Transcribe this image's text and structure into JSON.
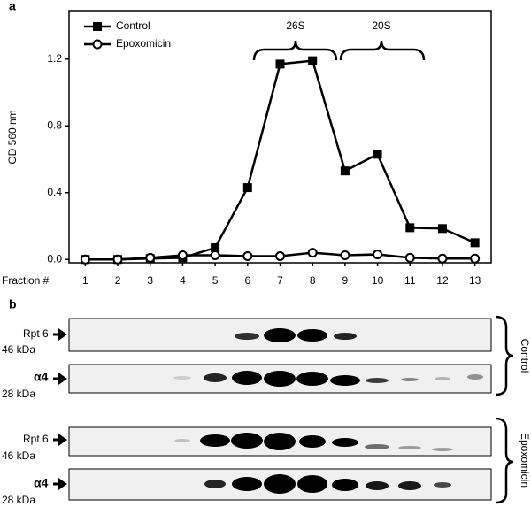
{
  "chart_data": {
    "type": "line",
    "panel_label": "a",
    "y_label": "OD 560 nm",
    "x_label": "Fraction #",
    "x": [
      1,
      2,
      3,
      4,
      5,
      6,
      7,
      8,
      9,
      10,
      11,
      12,
      13
    ],
    "xlim": [
      0.5,
      13.5
    ],
    "xticks": [
      1,
      2,
      3,
      4,
      5,
      6,
      7,
      8,
      9,
      10,
      11,
      12,
      13
    ],
    "ylim": [
      -0.02,
      1.49
    ],
    "yticks": [
      {
        "value": 0,
        "label": "0.0"
      },
      {
        "value": 0.4,
        "label": "0.4"
      },
      {
        "value": 0.8,
        "label": "0.8"
      },
      {
        "value": 1.2,
        "label": "1.2"
      }
    ],
    "legend": "upper left",
    "series": [
      {
        "name": "Control",
        "color": "#000000",
        "marker": "square",
        "values": [
          0.0,
          0.0,
          0.005,
          0.01,
          0.07,
          0.43,
          1.17,
          1.19,
          0.53,
          0.63,
          0.19,
          0.185,
          0.1
        ]
      },
      {
        "name": "Epoxomicin",
        "color": "#000000",
        "marker": "open-circle",
        "values": [
          0.0,
          0.0,
          0.01,
          0.025,
          0.025,
          0.02,
          0.02,
          0.04,
          0.025,
          0.03,
          0.01,
          0.005,
          0.005
        ]
      }
    ],
    "annotations": [
      "26S",
      "20S"
    ]
  },
  "blots": {
    "panel_label": "b",
    "groups": [
      {
        "name": "Control",
        "rows": [
          {
            "protein": "Rpt 6",
            "size": "46 kDa"
          },
          {
            "protein": "α4",
            "size": "28 kDa"
          }
        ]
      },
      {
        "name": "Epoxomicin",
        "rows": [
          {
            "protein": "Rpt 6",
            "size": "46 kDa"
          },
          {
            "protein": "α4",
            "size": "28 kDa"
          }
        ]
      }
    ]
  }
}
